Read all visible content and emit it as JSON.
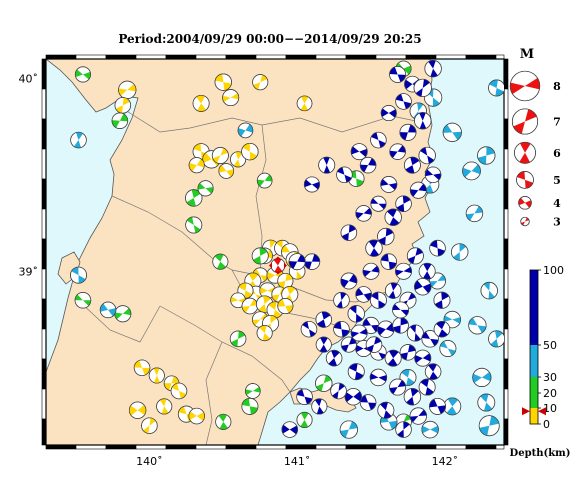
{
  "header": {
    "title": "Period:2004/09/29 00:00−−2014/09/29 20:25"
  },
  "map": {
    "lon_range": [
      139.3,
      142.4
    ],
    "lat_range": [
      38.1,
      40.1
    ],
    "lon_ticks": [
      {
        "value": 140,
        "label": "140˚"
      },
      {
        "value": 141,
        "label": "141˚"
      },
      {
        "value": 142,
        "label": "142˚"
      }
    ],
    "lat_ticks": [
      {
        "value": 40,
        "label": "40˚"
      },
      {
        "value": 39,
        "label": "39˚"
      }
    ],
    "colors": {
      "sea": "#dff8fb",
      "land": "#fbe3c1",
      "coast": "#555555",
      "border": "#777777"
    },
    "main_event": {
      "lon": 140.87,
      "lat": 39.03,
      "magnitude": 7.2,
      "depth_km": 8
    }
  },
  "legend_magnitude": {
    "title": "M",
    "items": [
      {
        "label": "8",
        "magnitude": 8
      },
      {
        "label": "7",
        "magnitude": 7
      },
      {
        "label": "6",
        "magnitude": 6
      },
      {
        "label": "5",
        "magnitude": 5
      },
      {
        "label": "4",
        "magnitude": 4
      },
      {
        "label": "3",
        "magnitude": 3
      }
    ],
    "color": "#ee1111"
  },
  "legend_depth": {
    "label": "Depth(km)",
    "ticks": [
      {
        "label": "100",
        "value": 100
      },
      {
        "label": "50",
        "value": 50
      },
      {
        "label": "30",
        "value": 30
      },
      {
        "label": "20",
        "value": 20
      },
      {
        "label": "10",
        "value": 10
      },
      {
        "label": "0",
        "value": 0
      }
    ],
    "bands": [
      {
        "from": 0,
        "to": 10,
        "color": "#ffd400"
      },
      {
        "from": 10,
        "to": 30,
        "color": "#22cc22"
      },
      {
        "from": 30,
        "to": 50,
        "color": "#22aadd"
      },
      {
        "from": 50,
        "to": 100,
        "color": "#0000aa"
      }
    ],
    "main_event_depth_km": 8
  },
  "chart_data": {
    "type": "scatter",
    "x_label": "",
    "y_label": "",
    "xlim": [
      139.3,
      142.4
    ],
    "ylim": [
      38.1,
      40.1
    ],
    "series": [
      {
        "depth_class": "shallow",
        "color": "#ffd400",
        "points": [
          [
            139.85,
            39.94,
            4.8
          ],
          [
            139.82,
            39.86,
            4.4
          ],
          [
            140.35,
            39.87,
            4.5
          ],
          [
            140.5,
            39.98,
            4.6
          ],
          [
            140.55,
            39.9,
            4.5
          ],
          [
            140.75,
            39.98,
            4.3
          ],
          [
            141.05,
            39.87,
            4.2
          ],
          [
            140.35,
            39.62,
            4.5
          ],
          [
            140.42,
            39.58,
            4.8
          ],
          [
            140.48,
            39.6,
            4.5
          ],
          [
            140.6,
            39.58,
            4.3
          ],
          [
            140.68,
            39.62,
            4.6
          ],
          [
            140.52,
            39.52,
            4.2
          ],
          [
            140.32,
            39.55,
            4.3
          ],
          [
            140.82,
            39.12,
            4.5
          ],
          [
            140.9,
            39.12,
            4.4
          ],
          [
            140.95,
            39.1,
            4.6
          ],
          [
            140.78,
            39.08,
            4.4
          ],
          [
            140.98,
            39.06,
            4.5
          ],
          [
            141.0,
            39.0,
            4.4
          ],
          [
            140.75,
            38.98,
            4.2
          ],
          [
            140.85,
            38.98,
            4.5
          ],
          [
            140.92,
            38.95,
            4.3
          ],
          [
            140.7,
            38.95,
            4.5
          ],
          [
            140.72,
            38.88,
            4.6
          ],
          [
            140.8,
            38.9,
            4.4
          ],
          [
            140.88,
            38.88,
            4.3
          ],
          [
            140.95,
            38.88,
            4.5
          ],
          [
            140.65,
            38.9,
            4.3
          ],
          [
            140.6,
            38.85,
            4.2
          ],
          [
            140.68,
            38.82,
            4.4
          ],
          [
            140.78,
            38.83,
            4.6
          ],
          [
            140.85,
            38.8,
            4.5
          ],
          [
            140.92,
            38.82,
            4.3
          ],
          [
            140.75,
            38.75,
            4.4
          ],
          [
            140.82,
            38.73,
            4.5
          ],
          [
            140.78,
            38.68,
            4.3
          ],
          [
            139.95,
            38.5,
            4.4
          ],
          [
            139.92,
            38.28,
            4.6
          ],
          [
            140.0,
            38.2,
            4.4
          ],
          [
            140.1,
            38.3,
            4.3
          ],
          [
            140.25,
            38.26,
            4.5
          ],
          [
            140.32,
            38.25,
            4.4
          ],
          [
            140.15,
            38.42,
            4.2
          ],
          [
            140.05,
            38.46,
            4.3
          ],
          [
            140.2,
            38.38,
            4.4
          ]
        ]
      },
      {
        "depth_class": "mid-shallow",
        "color": "#22cc22",
        "points": [
          [
            139.55,
            40.02,
            4.3
          ],
          [
            139.8,
            39.78,
            4.4
          ],
          [
            140.3,
            39.38,
            4.6
          ],
          [
            140.3,
            39.24,
            4.5
          ],
          [
            140.38,
            39.43,
            4.3
          ],
          [
            140.78,
            39.47,
            4.2
          ],
          [
            140.75,
            39.08,
            4.5
          ],
          [
            140.48,
            39.05,
            4.3
          ],
          [
            139.55,
            38.85,
            4.4
          ],
          [
            139.82,
            38.78,
            4.5
          ],
          [
            140.6,
            38.65,
            4.4
          ],
          [
            140.5,
            38.22,
            4.3
          ],
          [
            140.68,
            38.3,
            4.5
          ],
          [
            140.7,
            38.38,
            4.2
          ],
          [
            141.18,
            38.42,
            4.6
          ],
          [
            141.05,
            38.23,
            4.3
          ],
          [
            141.4,
            39.48,
            4.4
          ],
          [
            141.72,
            40.05,
            4.3
          ],
          [
            141.72,
            38.22,
            4.4
          ]
        ]
      },
      {
        "depth_class": "intermediate",
        "color": "#22aadd",
        "points": [
          [
            139.52,
            39.68,
            4.4
          ],
          [
            139.52,
            38.98,
            4.5
          ],
          [
            139.72,
            38.8,
            4.4
          ],
          [
            140.65,
            39.73,
            4.2
          ],
          [
            141.82,
            39.83,
            4.6
          ],
          [
            141.92,
            39.9,
            4.8
          ],
          [
            142.05,
            39.72,
            5.0
          ],
          [
            142.18,
            39.52,
            4.9
          ],
          [
            142.28,
            39.6,
            4.8
          ],
          [
            142.3,
            38.9,
            4.6
          ],
          [
            142.22,
            38.72,
            4.8
          ],
          [
            142.25,
            38.45,
            5.0
          ],
          [
            142.3,
            38.2,
            5.4
          ],
          [
            142.05,
            38.3,
            4.7
          ],
          [
            142.02,
            38.6,
            4.5
          ],
          [
            141.9,
            38.18,
            4.6
          ],
          [
            141.35,
            38.18,
            4.8
          ],
          [
            141.9,
            39.45,
            4.8
          ],
          [
            142.35,
            39.95,
            4.5
          ],
          [
            142.05,
            38.75,
            4.6
          ],
          [
            142.2,
            39.3,
            4.6
          ],
          [
            142.35,
            38.65,
            4.5
          ],
          [
            141.75,
            38.45,
            4.5
          ],
          [
            141.62,
            38.22,
            4.6
          ],
          [
            141.95,
            38.95,
            4.5
          ],
          [
            142.1,
            39.1,
            4.6
          ],
          [
            142.28,
            38.32,
            4.7
          ]
        ]
      },
      {
        "depth_class": "deep",
        "color": "#0000aa",
        "points": [
          [
            141.68,
            40.02,
            4.5
          ],
          [
            141.78,
            39.97,
            4.4
          ],
          [
            141.85,
            39.95,
            4.8
          ],
          [
            141.92,
            40.05,
            4.6
          ],
          [
            141.72,
            39.88,
            4.4
          ],
          [
            141.62,
            39.82,
            4.3
          ],
          [
            141.75,
            39.72,
            4.5
          ],
          [
            141.85,
            39.78,
            4.6
          ],
          [
            141.55,
            39.68,
            4.4
          ],
          [
            141.42,
            39.62,
            4.5
          ],
          [
            141.48,
            39.55,
            4.4
          ],
          [
            141.78,
            39.55,
            4.5
          ],
          [
            141.88,
            39.6,
            4.6
          ],
          [
            141.92,
            39.5,
            4.4
          ],
          [
            141.82,
            39.42,
            4.5
          ],
          [
            141.72,
            39.35,
            4.4
          ],
          [
            141.65,
            39.28,
            4.6
          ],
          [
            141.55,
            39.35,
            4.3
          ],
          [
            141.45,
            39.3,
            4.4
          ],
          [
            141.35,
            39.2,
            4.4
          ],
          [
            141.52,
            39.12,
            4.6
          ],
          [
            141.62,
            39.05,
            4.4
          ],
          [
            141.72,
            39.0,
            4.5
          ],
          [
            141.8,
            39.08,
            4.5
          ],
          [
            141.88,
            39.0,
            4.5
          ],
          [
            141.95,
            39.12,
            4.4
          ],
          [
            141.85,
            38.92,
            4.6
          ],
          [
            141.75,
            38.85,
            4.5
          ],
          [
            141.65,
            38.9,
            4.4
          ],
          [
            141.55,
            38.85,
            4.5
          ],
          [
            141.45,
            38.88,
            4.4
          ],
          [
            141.35,
            38.95,
            4.5
          ],
          [
            141.3,
            38.85,
            4.4
          ],
          [
            141.4,
            38.78,
            4.6
          ],
          [
            141.5,
            38.72,
            4.5
          ],
          [
            141.6,
            38.7,
            4.6
          ],
          [
            141.7,
            38.72,
            4.4
          ],
          [
            141.8,
            38.68,
            4.5
          ],
          [
            141.9,
            38.65,
            4.6
          ],
          [
            141.85,
            38.55,
            4.5
          ],
          [
            141.75,
            38.58,
            4.4
          ],
          [
            141.65,
            38.55,
            4.5
          ],
          [
            141.55,
            38.58,
            4.4
          ],
          [
            141.45,
            38.6,
            4.5
          ],
          [
            141.35,
            38.62,
            4.3
          ],
          [
            141.25,
            38.55,
            4.4
          ],
          [
            141.4,
            38.48,
            4.5
          ],
          [
            141.55,
            38.45,
            4.6
          ],
          [
            141.68,
            38.4,
            4.5
          ],
          [
            141.78,
            38.35,
            4.6
          ],
          [
            141.88,
            38.4,
            4.5
          ],
          [
            141.95,
            38.3,
            4.5
          ],
          [
            141.82,
            38.25,
            4.6
          ],
          [
            141.72,
            38.18,
            4.4
          ],
          [
            141.6,
            38.28,
            4.5
          ],
          [
            141.48,
            38.32,
            4.4
          ],
          [
            141.38,
            38.35,
            4.6
          ],
          [
            141.28,
            38.38,
            4.4
          ],
          [
            141.15,
            38.3,
            4.3
          ],
          [
            141.05,
            38.35,
            4.4
          ],
          [
            140.95,
            38.18,
            4.4
          ],
          [
            141.1,
            39.05,
            4.4
          ],
          [
            141.2,
            39.55,
            4.5
          ],
          [
            141.32,
            39.5,
            4.4
          ],
          [
            141.1,
            39.45,
            4.3
          ],
          [
            141.0,
            39.05,
            4.5
          ],
          [
            141.18,
            38.75,
            4.4
          ],
          [
            141.08,
            38.7,
            4.4
          ],
          [
            141.62,
            39.45,
            4.5
          ],
          [
            141.68,
            39.62,
            4.4
          ],
          [
            141.98,
            38.85,
            4.5
          ],
          [
            141.98,
            38.7,
            4.4
          ],
          [
            141.7,
            38.8,
            4.5
          ],
          [
            141.5,
            39.0,
            4.5
          ],
          [
            141.6,
            39.18,
            4.6
          ],
          [
            141.92,
            38.48,
            4.4
          ],
          [
            141.3,
            38.7,
            4.4
          ],
          [
            141.42,
            38.68,
            4.5
          ],
          [
            141.52,
            38.62,
            4.4
          ],
          [
            141.18,
            38.62,
            4.3
          ]
        ]
      }
    ]
  }
}
